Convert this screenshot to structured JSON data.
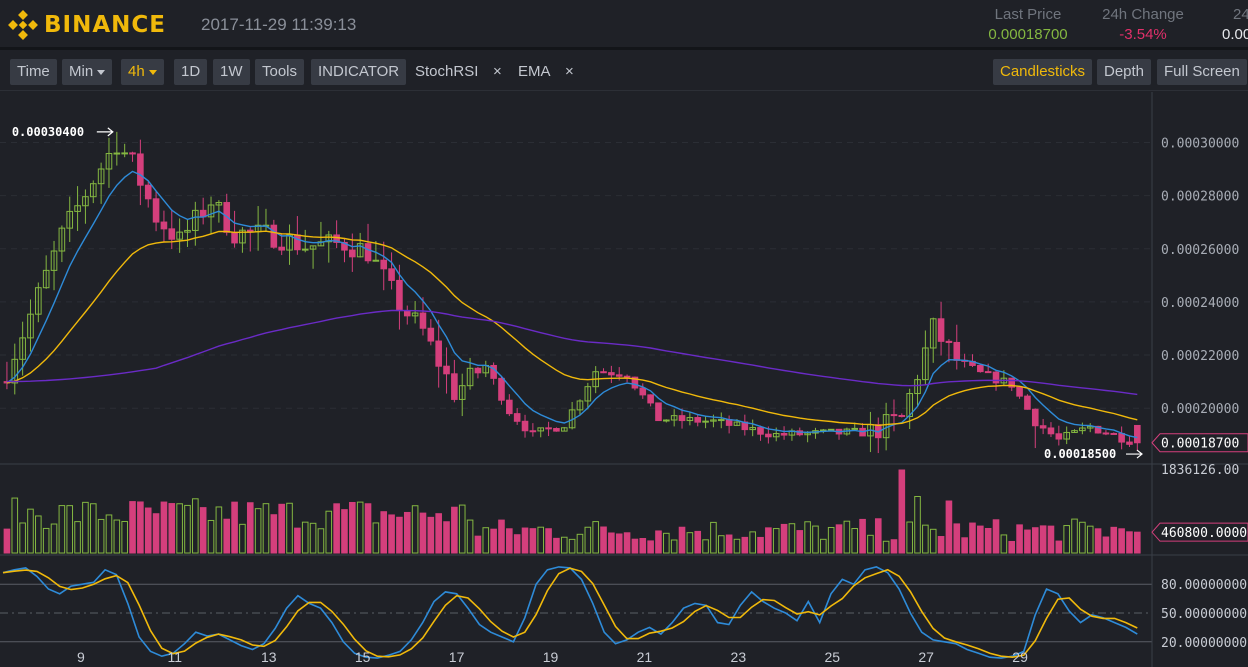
{
  "header": {
    "brand": "BINANCE",
    "datetime": "2017-11-29 11:39:13",
    "last_price_label": "Last Price",
    "last_price": "0.00018700",
    "change_label": "24h Change",
    "change": "-3.54%",
    "cut_label": "24",
    "cut_value": "0.00"
  },
  "toolbar": {
    "time": "Time",
    "min": "Min",
    "h4": "4h",
    "d1": "1D",
    "w1": "1W",
    "tools": "Tools",
    "indicator": "INDICATOR",
    "stochrsi": "StochRSI",
    "close1": "×",
    "ema": "EMA",
    "close2": "×",
    "candlesticks": "Candlesticks",
    "depth": "Depth",
    "fullscreen": "Full Screen"
  },
  "colors": {
    "up": "#84b741",
    "down": "#d43f7c",
    "ema_short": "#2e8bd8",
    "ema_mid": "#f0b90b",
    "ema_long": "#6a2bc6",
    "stoch_k": "#2e8bd8",
    "stoch_d": "#f0b90b",
    "accent": "#f0b90b",
    "pos_change": "#84b741",
    "neg_change": "#e0306a"
  },
  "chart_data": {
    "type": "candlestick",
    "price_axis_ticks": [
      "0.00030000",
      "0.00028000",
      "0.00026000",
      "0.00024000",
      "0.00022000",
      "0.00020000"
    ],
    "price_range": [
      0.000179,
      0.000319
    ],
    "high_label": "0.00030400",
    "high_value": 0.000304,
    "low_label": "0.00018500",
    "low_value": 0.000185,
    "current_price_label": "0.00018700",
    "current_price": 0.000187,
    "volume_axis_top": "1836126.00",
    "volume_axis_max": 1836126,
    "current_volume_label": "460800.00000",
    "current_volume": 460800,
    "stoch_ticks": [
      "80.00000000",
      "50.00000000",
      "20.00000000"
    ],
    "x_labels": [
      "9",
      "11",
      "13",
      "15",
      "17",
      "19",
      "21",
      "23",
      "25",
      "27",
      "29"
    ],
    "x_label_candle_index": [
      12,
      24,
      36,
      48,
      60,
      72,
      84,
      96,
      108,
      120,
      132
    ]
  }
}
